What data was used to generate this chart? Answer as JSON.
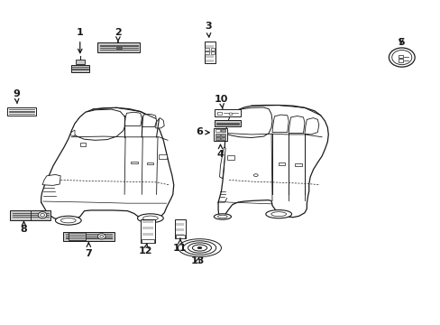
{
  "background_color": "#ffffff",
  "line_color": "#1a1a1a",
  "light_gray": "#c8c8c8",
  "mid_gray": "#999999",
  "dark_gray": "#444444",
  "figsize": [
    4.89,
    3.6
  ],
  "dpi": 100,
  "label_positions": {
    "1": [
      0.175,
      0.905,
      0.175,
      0.84
    ],
    "2": [
      0.265,
      0.91,
      0.265,
      0.87
    ],
    "3": [
      0.475,
      0.935,
      0.475,
      0.88
    ],
    "4": [
      0.5,
      0.53,
      0.5,
      0.565
    ],
    "5": [
      0.92,
      0.88,
      0.92,
      0.84
    ],
    "6": [
      0.455,
      0.595,
      0.49,
      0.595
    ],
    "7": [
      0.195,
      0.21,
      0.195,
      0.248
    ],
    "8": [
      0.055,
      0.285,
      0.055,
      0.32
    ],
    "9": [
      0.04,
      0.71,
      0.04,
      0.67
    ],
    "10": [
      0.505,
      0.7,
      0.505,
      0.66
    ],
    "11": [
      0.407,
      0.23,
      0.407,
      0.27
    ],
    "12": [
      0.33,
      0.22,
      0.33,
      0.262
    ],
    "13": [
      0.448,
      0.185,
      0.448,
      0.22
    ]
  }
}
